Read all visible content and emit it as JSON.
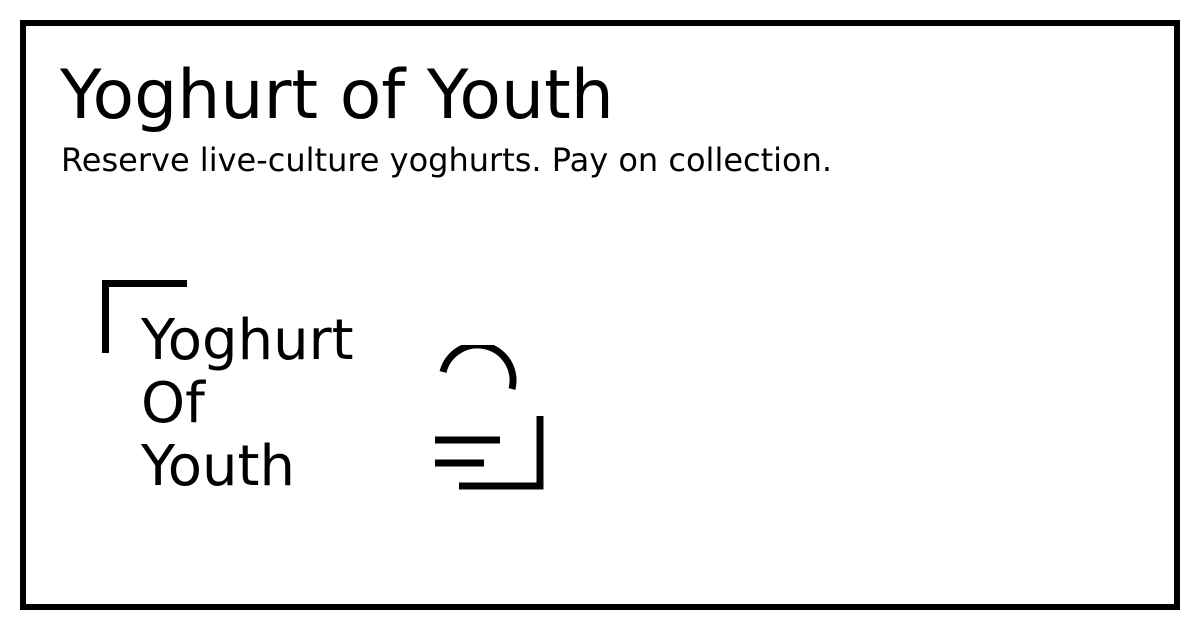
{
  "brand": {
    "title": "Yoghurt of Youth",
    "tagline": "Reserve live-culture yoghurts. Pay on collection."
  },
  "logo": {
    "line1": "Yoghurt",
    "line2": "Of",
    "line3": "Youth",
    "mark_icon": "lid-and-tray-icon",
    "corner_icon": "corner-bracket-icon"
  },
  "colors": {
    "ink": "#000000",
    "background": "#ffffff"
  }
}
